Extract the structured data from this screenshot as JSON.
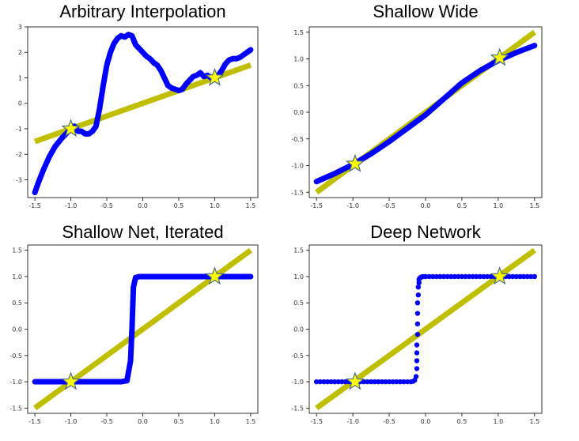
{
  "chart_data": [
    {
      "type": "line",
      "title": "Arbitrary Interpolation",
      "xlabel": "",
      "ylabel": "",
      "xlim": [
        -1.6,
        1.6
      ],
      "ylim": [
        -3.7,
        3.0
      ],
      "xticks": [
        "-1.5",
        "-1.0",
        "-0.5",
        "0.0",
        "0.5",
        "1.0",
        "1.5"
      ],
      "yticks": [
        "-3",
        "-2",
        "-1",
        "0",
        "1",
        "2",
        "3"
      ],
      "series": [
        {
          "role": "target-line",
          "color": "#bfbf00",
          "x": [
            -1.5,
            1.5
          ],
          "y": [
            -1.5,
            1.5
          ]
        },
        {
          "role": "fit",
          "color": "#0000ff",
          "x": [
            -1.5,
            -1.45,
            -1.38,
            -1.3,
            -1.22,
            -1.12,
            -1.05,
            -1.0,
            -0.95,
            -0.9,
            -0.85,
            -0.8,
            -0.75,
            -0.7,
            -0.65,
            -0.6,
            -0.55,
            -0.5,
            -0.45,
            -0.4,
            -0.35,
            -0.3,
            -0.25,
            -0.2,
            -0.15,
            -0.1,
            -0.05,
            0.0,
            0.05,
            0.1,
            0.15,
            0.2,
            0.25,
            0.3,
            0.35,
            0.4,
            0.45,
            0.5,
            0.55,
            0.6,
            0.65,
            0.7,
            0.75,
            0.8,
            0.85,
            0.9,
            0.95,
            1.0,
            1.05,
            1.1,
            1.15,
            1.2,
            1.25,
            1.3,
            1.35,
            1.4,
            1.45,
            1.5
          ],
          "y": [
            -3.5,
            -3.1,
            -2.6,
            -2.1,
            -1.7,
            -1.35,
            -1.15,
            -0.95,
            -0.9,
            -1.1,
            -1.1,
            -1.2,
            -1.2,
            -1.1,
            -0.9,
            -0.2,
            0.7,
            1.5,
            2.0,
            2.35,
            2.55,
            2.65,
            2.6,
            2.7,
            2.65,
            2.3,
            2.15,
            2.0,
            1.85,
            1.75,
            1.6,
            1.5,
            1.3,
            1.0,
            0.7,
            0.6,
            0.55,
            0.5,
            0.55,
            0.75,
            0.9,
            1.05,
            1.1,
            1.2,
            1.05,
            1.1,
            1.0,
            1.0,
            1.1,
            1.3,
            1.55,
            1.7,
            1.75,
            1.75,
            1.8,
            1.9,
            2.0,
            2.1
          ]
        },
        {
          "role": "points",
          "marker": "star",
          "x": [
            -1.0,
            1.0
          ],
          "y": [
            -1.0,
            1.0
          ]
        }
      ]
    },
    {
      "type": "line",
      "title": "Shallow Wide",
      "xlabel": "",
      "ylabel": "",
      "xlim": [
        -1.6,
        1.6
      ],
      "ylim": [
        -1.6,
        1.6
      ],
      "xticks": [
        "-1.5",
        "-1.0",
        "-0.5",
        "0.0",
        "0.5",
        "1.0",
        "1.5"
      ],
      "yticks": [
        "-1.5",
        "-1.0",
        "-0.5",
        "0.0",
        "0.5",
        "1.0",
        "1.5"
      ],
      "series": [
        {
          "role": "target-line",
          "color": "#bfbf00",
          "x": [
            -1.5,
            1.5
          ],
          "y": [
            -1.5,
            1.5
          ]
        },
        {
          "role": "fit",
          "color": "#0000ff",
          "x": [
            -1.5,
            -1.25,
            -1.0,
            -0.75,
            -0.5,
            -0.25,
            0.0,
            0.25,
            0.5,
            0.75,
            1.0,
            1.25,
            1.5
          ],
          "y": [
            -1.3,
            -1.15,
            -0.98,
            -0.78,
            -0.55,
            -0.3,
            -0.05,
            0.25,
            0.55,
            0.78,
            0.97,
            1.12,
            1.25
          ]
        },
        {
          "role": "points",
          "marker": "star",
          "x": [
            -0.97,
            1.02
          ],
          "y": [
            -0.97,
            1.02
          ]
        }
      ]
    },
    {
      "type": "line",
      "title": "Shallow Net, Iterated",
      "xlabel": "",
      "ylabel": "",
      "xlim": [
        -1.6,
        1.6
      ],
      "ylim": [
        -1.6,
        1.6
      ],
      "xticks": [
        "-1.5",
        "-1.0",
        "-0.5",
        "0.0",
        "0.5",
        "1.0",
        "1.5"
      ],
      "yticks": [
        "-1.5",
        "-1.0",
        "-0.5",
        "0.0",
        "0.5",
        "1.0",
        "1.5"
      ],
      "series": [
        {
          "role": "target-line",
          "color": "#bfbf00",
          "x": [
            -1.5,
            1.5
          ],
          "y": [
            -1.5,
            1.5
          ]
        },
        {
          "role": "fit",
          "color": "#0000ff",
          "x": [
            -1.5,
            -0.3,
            -0.22,
            -0.17,
            -0.15,
            -0.13,
            -0.1,
            -0.05,
            1.5
          ],
          "y": [
            -1.0,
            -1.0,
            -0.98,
            -0.6,
            0.0,
            0.8,
            0.98,
            1.0,
            1.0
          ]
        },
        {
          "role": "points",
          "marker": "star",
          "x": [
            -1.0,
            1.0
          ],
          "y": [
            -1.0,
            1.0
          ]
        }
      ]
    },
    {
      "type": "scatter",
      "title": "Deep Network",
      "xlabel": "",
      "ylabel": "",
      "xlim": [
        -1.6,
        1.6
      ],
      "ylim": [
        -1.6,
        1.6
      ],
      "xticks": [
        "-1.5",
        "-1.0",
        "-0.5",
        "0.0",
        "0.5",
        "1.0",
        "1.5"
      ],
      "yticks": [
        "-1.5",
        "-1.0",
        "-0.5",
        "0.0",
        "0.5",
        "1.0",
        "1.5"
      ],
      "series": [
        {
          "role": "target-line",
          "color": "#bfbf00",
          "x": [
            -1.5,
            1.5
          ],
          "y": [
            -1.5,
            1.5
          ]
        },
        {
          "role": "fit",
          "color": "#0000ff",
          "x": [
            -1.5,
            -1.45,
            -1.4,
            -1.35,
            -1.3,
            -1.25,
            -1.2,
            -1.15,
            -1.1,
            -1.05,
            -1.0,
            -0.95,
            -0.9,
            -0.85,
            -0.8,
            -0.75,
            -0.7,
            -0.65,
            -0.6,
            -0.55,
            -0.5,
            -0.45,
            -0.4,
            -0.35,
            -0.3,
            -0.25,
            -0.2,
            -0.17,
            -0.15,
            -0.13,
            -0.12,
            -0.12,
            -0.12,
            -0.12,
            -0.11,
            -0.11,
            -0.11,
            -0.11,
            -0.1,
            -0.1,
            -0.09,
            -0.09,
            -0.08,
            -0.07,
            -0.06,
            -0.04,
            -0.02,
            0.0,
            0.05,
            0.1,
            0.15,
            0.2,
            0.25,
            0.3,
            0.35,
            0.4,
            0.45,
            0.5,
            0.55,
            0.6,
            0.65,
            0.7,
            0.75,
            0.8,
            0.85,
            0.9,
            0.95,
            1.0,
            1.05,
            1.1,
            1.15,
            1.2,
            1.25,
            1.3,
            1.35,
            1.4,
            1.45,
            1.5
          ],
          "y": [
            -1.0,
            -1.0,
            -1.0,
            -1.0,
            -1.0,
            -1.0,
            -1.0,
            -1.0,
            -1.0,
            -1.0,
            -1.0,
            -1.0,
            -1.0,
            -1.0,
            -1.0,
            -1.0,
            -1.0,
            -1.0,
            -1.0,
            -1.0,
            -1.0,
            -1.0,
            -1.0,
            -1.0,
            -1.0,
            -1.0,
            -1.0,
            -0.99,
            -0.97,
            -0.9,
            -0.75,
            -0.6,
            -0.45,
            -0.3,
            -0.1,
            0.1,
            0.3,
            0.5,
            0.65,
            0.8,
            0.88,
            0.94,
            0.97,
            0.98,
            0.99,
            1.0,
            1.0,
            1.0,
            1.0,
            1.0,
            1.0,
            1.0,
            1.0,
            1.0,
            1.0,
            1.0,
            1.0,
            1.0,
            1.0,
            1.0,
            1.0,
            1.0,
            1.0,
            1.0,
            1.0,
            1.0,
            1.0,
            1.0,
            1.0,
            1.0,
            1.0,
            1.0,
            1.0,
            1.0,
            1.0,
            1.0,
            1.0,
            1.0
          ]
        },
        {
          "role": "points",
          "marker": "star",
          "x": [
            -0.97,
            1.02
          ],
          "y": [
            -1.0,
            1.0
          ]
        }
      ]
    }
  ]
}
